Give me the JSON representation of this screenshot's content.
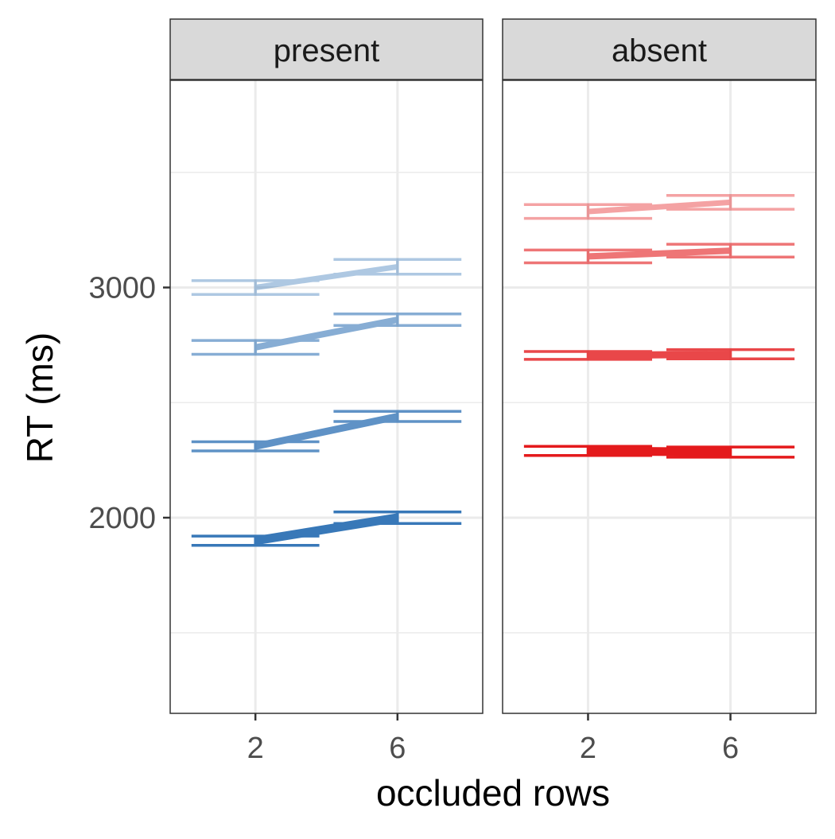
{
  "chart_data": {
    "type": "line",
    "title": "",
    "xlabel": "occluded rows",
    "ylabel": "RT (ms)",
    "x": [
      2,
      6
    ],
    "xlim": [
      -0.4,
      8.4
    ],
    "ylim": [
      1150,
      3900
    ],
    "yticks": [
      2000,
      3000
    ],
    "ytick_labels": [
      "2000",
      "3000"
    ],
    "xtick_labels": [
      "2",
      "6"
    ],
    "grid": true,
    "error_bar_half_width": 1.8,
    "panels": [
      {
        "label": "present",
        "series": [
          {
            "color": "#3878b8",
            "opacity": 1.0,
            "width": 11,
            "values": [
              1900,
              2000
            ],
            "error": [
              20,
              25
            ]
          },
          {
            "color": "#3878b8",
            "opacity": 0.8,
            "width": 9,
            "values": [
              2310,
              2440
            ],
            "error": [
              20,
              22
            ]
          },
          {
            "color": "#3878b8",
            "opacity": 0.6,
            "width": 8,
            "values": [
              2740,
              2860
            ],
            "error": [
              30,
              25
            ]
          },
          {
            "color": "#3878b8",
            "opacity": 0.4,
            "width": 7,
            "values": [
              3000,
              3090
            ],
            "error": [
              30,
              32
            ]
          }
        ]
      },
      {
        "label": "absent",
        "series": [
          {
            "color": "#e41a1c",
            "opacity": 1.0,
            "width": 11,
            "values": [
              2290,
              2285
            ],
            "error": [
              20,
              22
            ]
          },
          {
            "color": "#e41a1c",
            "opacity": 0.8,
            "width": 9,
            "values": [
              2705,
              2710
            ],
            "error": [
              17,
              20
            ]
          },
          {
            "color": "#e41a1c",
            "opacity": 0.6,
            "width": 8,
            "values": [
              3135,
              3160
            ],
            "error": [
              28,
              28
            ]
          },
          {
            "color": "#e41a1c",
            "opacity": 0.4,
            "width": 7,
            "values": [
              3330,
              3370
            ],
            "error": [
              30,
              30
            ]
          }
        ]
      }
    ]
  }
}
